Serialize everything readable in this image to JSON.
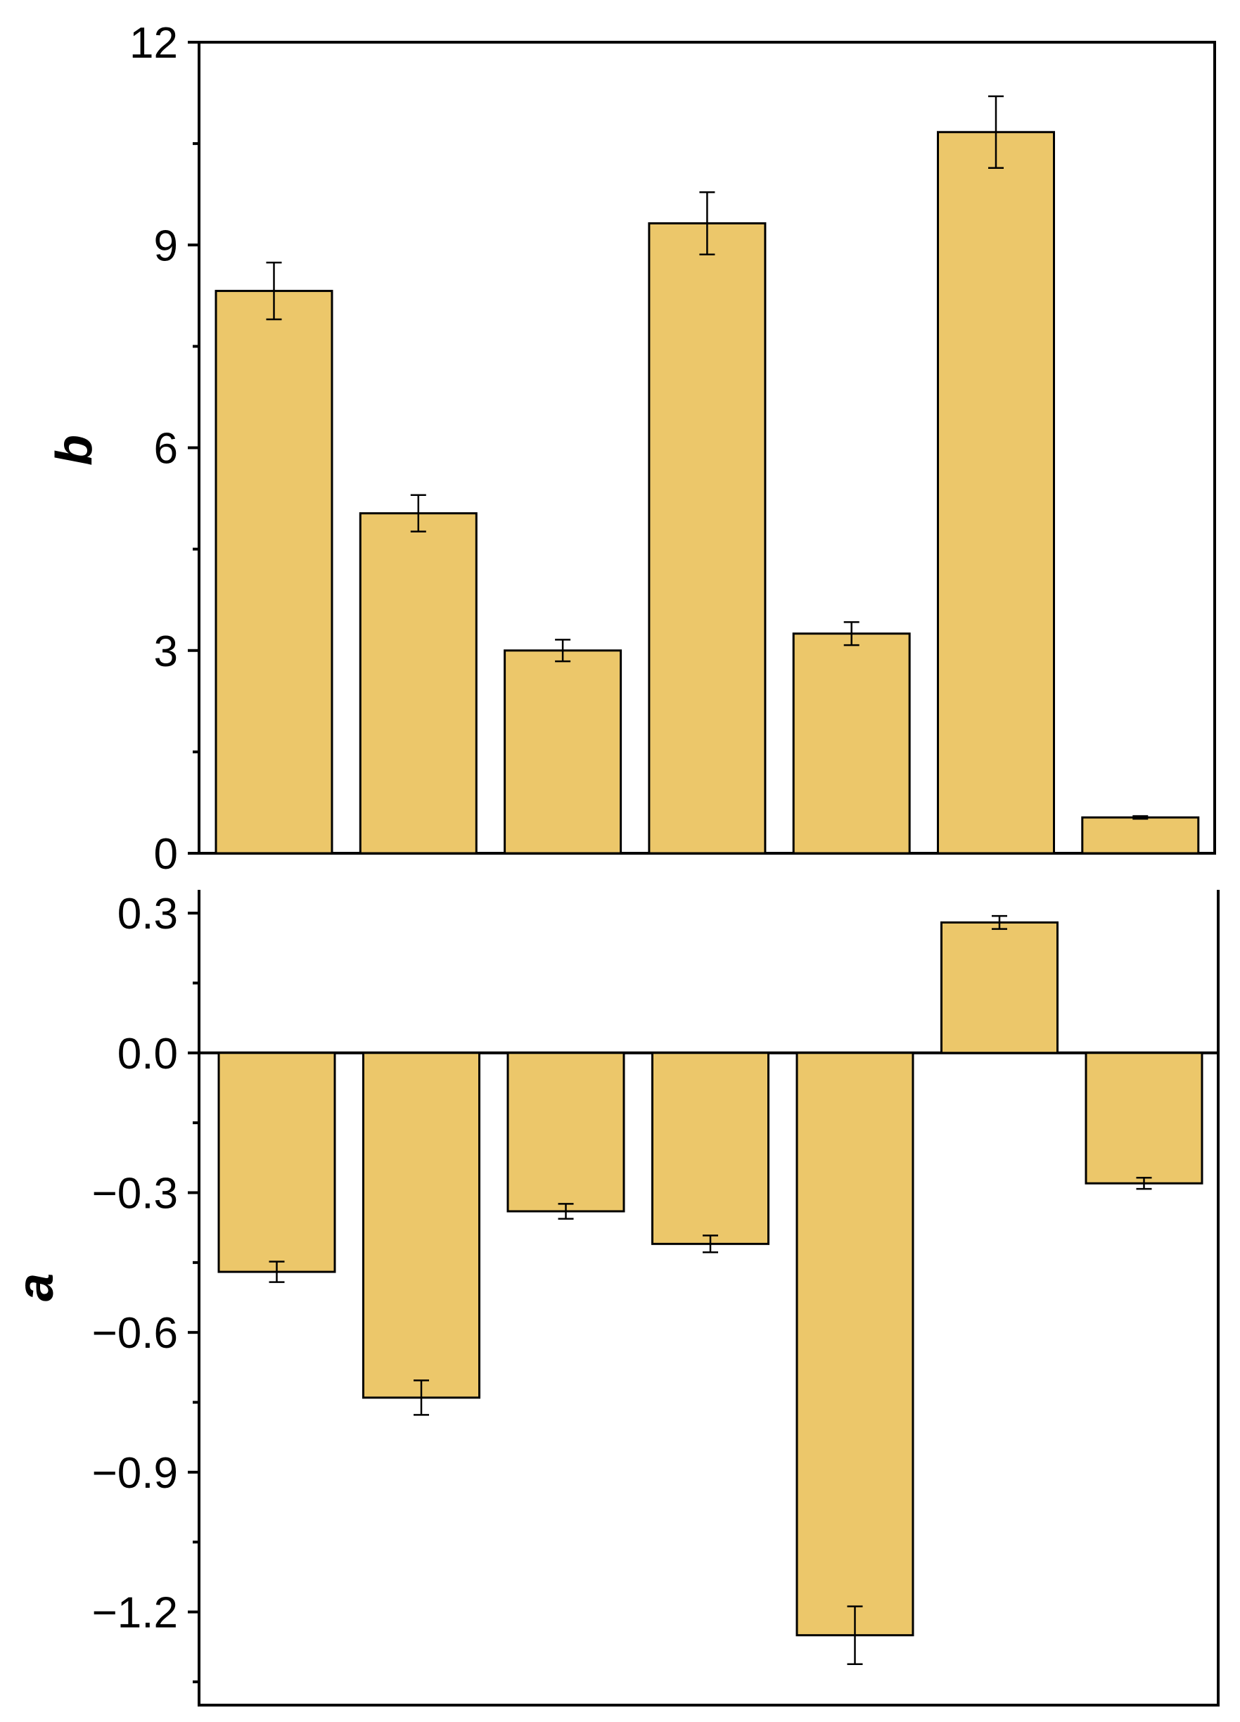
{
  "colors": {
    "bar_fill": "#ECC76A",
    "bar_stroke": "#000000"
  },
  "chart_data": [
    {
      "type": "bar",
      "title": "",
      "xlabel": "",
      "ylabel": "b",
      "ylim": [
        0,
        12
      ],
      "yticks": [
        0,
        3,
        6,
        9,
        12
      ],
      "ytick_labels": [
        "0",
        "3",
        "6",
        "9",
        "12"
      ],
      "grid": false,
      "series": [
        {
          "values": [
            8.32,
            5.03,
            3.0,
            9.32,
            3.25,
            10.67,
            0.53
          ],
          "errors": [
            0.42,
            0.27,
            0.16,
            0.46,
            0.17,
            0.53,
            0.02
          ]
        }
      ]
    },
    {
      "type": "bar",
      "title": "",
      "xlabel": "",
      "ylabel": "a",
      "ylim": [
        -1.4,
        0.35
      ],
      "yticks": [
        0.3,
        0.0,
        -0.3,
        -0.6,
        -0.9,
        -1.2
      ],
      "ytick_labels": [
        "0.3",
        "0.0",
        "−0.3",
        "−0.6",
        "−0.9",
        "−1.2"
      ],
      "grid": false,
      "series": [
        {
          "values": [
            -0.47,
            -0.74,
            -0.34,
            -0.41,
            -1.25,
            0.28,
            -0.28
          ],
          "errors": [
            0.022,
            0.037,
            0.016,
            0.018,
            0.062,
            0.014,
            0.012
          ]
        }
      ]
    }
  ]
}
